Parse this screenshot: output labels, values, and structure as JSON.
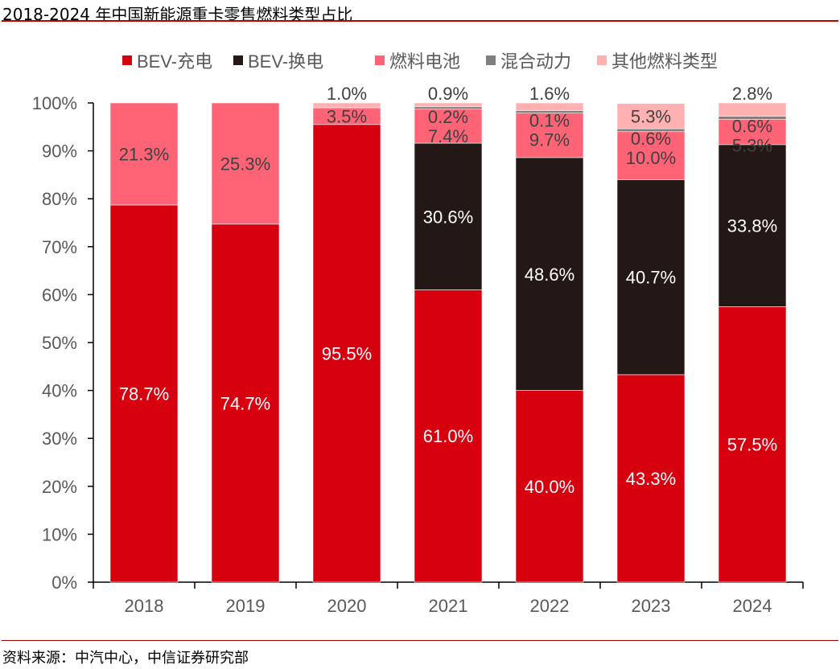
{
  "title": "2018-2024 年中国新能源重卡零售燃料类型占比",
  "source": "资料来源：中汽中心，中信证券研究部",
  "chart_data": {
    "type": "bar",
    "stacked": true,
    "title": "2018-2024 年中国新能源重卡零售燃料类型占比",
    "categories": [
      "2018",
      "2019",
      "2020",
      "2021",
      "2022",
      "2023",
      "2024"
    ],
    "ylim": [
      0,
      100
    ],
    "yticks": [
      "0%",
      "10%",
      "20%",
      "30%",
      "40%",
      "50%",
      "60%",
      "70%",
      "80%",
      "90%",
      "100%"
    ],
    "grid": false,
    "legend": "top",
    "series": [
      {
        "name": "BEV-充电",
        "color": "#D7000F",
        "values": [
          78.7,
          74.7,
          95.5,
          61.0,
          40.0,
          43.3,
          57.5
        ],
        "labels": [
          "78.7%",
          "74.7%",
          "95.5%",
          "61.0%",
          "40.0%",
          "43.3%",
          "57.5%"
        ]
      },
      {
        "name": "BEV-换电",
        "color": "#231815",
        "values": [
          0,
          0,
          0,
          30.6,
          48.6,
          40.7,
          33.8
        ],
        "labels": [
          "",
          "",
          "",
          "30.6%",
          "48.6%",
          "40.7%",
          "33.8%"
        ]
      },
      {
        "name": "燃料电池",
        "color": "#FF6376",
        "values": [
          21.3,
          25.3,
          3.5,
          7.4,
          9.7,
          10.0,
          5.3
        ],
        "labels": [
          "21.3%",
          "25.3%",
          "3.5%",
          "7.4%",
          "9.7%",
          "10.0%",
          "5.3%"
        ]
      },
      {
        "name": "混合动力",
        "color": "#7F7F7F",
        "values": [
          0,
          0,
          0,
          0.2,
          0.1,
          0.6,
          0.6
        ],
        "labels": [
          "",
          "",
          "",
          "0.2%",
          "0.1%",
          "0.6%",
          "0.6%"
        ]
      },
      {
        "name": "其他燃料类型",
        "color": "#FFB0B0",
        "values": [
          0,
          0,
          1.0,
          0.9,
          1.6,
          5.3,
          2.8
        ],
        "labels": [
          "",
          "",
          "1.0%",
          "0.9%",
          "1.6%",
          "5.3%",
          "2.8%"
        ]
      }
    ]
  }
}
